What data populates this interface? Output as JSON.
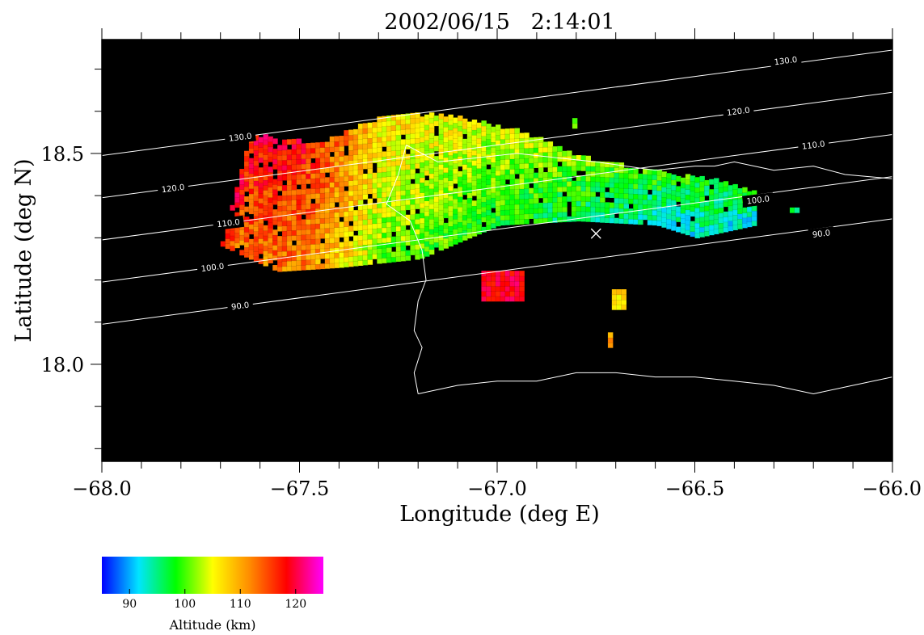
{
  "chart_data": {
    "type": "heatmap",
    "title": "2002/06/15   2:14:01",
    "xlabel": "Longitude (deg E)",
    "ylabel": "Latitude (deg N)",
    "xlim": [
      -68.0,
      -66.0
    ],
    "ylim": [
      17.77,
      18.77
    ],
    "x_ticks": [
      -68.0,
      -67.5,
      -67.0,
      -66.5,
      -66.0
    ],
    "x_tick_labels": [
      "−68.0",
      "−67.5",
      "−67.0",
      "−66.5",
      "−66.0"
    ],
    "x_minor_step": 0.1,
    "y_ticks": [
      18.0,
      18.5
    ],
    "y_tick_labels": [
      "18.0",
      "18.5"
    ],
    "y_minor_step": 0.1,
    "background_color": "#000000",
    "grid": false,
    "cell_size_deg": [
      0.012,
      0.012
    ],
    "value_units": "km",
    "colorbar": {
      "label": "Altitude (km)",
      "range": [
        85,
        125
      ],
      "ticks": [
        90,
        100,
        110,
        120
      ],
      "tick_labels": [
        "90",
        "100",
        "110",
        "120"
      ],
      "colors": [
        "#0000ff",
        "#00e5ff",
        "#00ff00",
        "#ffff00",
        "#ff8c00",
        "#ff0000",
        "#ff00ff"
      ],
      "placement": "bottom-left"
    },
    "altitude_contours": [
      {
        "label": "90.0",
        "line": [
          [
            -68.0,
            18.095
          ],
          [
            -66.0,
            18.345
          ]
        ],
        "label_at": -67.65
      },
      {
        "label": "100.0",
        "line": [
          [
            -68.0,
            18.195
          ],
          [
            -66.0,
            18.445
          ]
        ],
        "label_at": -67.72
      },
      {
        "label": "110.0",
        "line": [
          [
            -68.0,
            18.295
          ],
          [
            -66.0,
            18.545
          ]
        ],
        "label_at": -67.68
      },
      {
        "label": "120.0",
        "line": [
          [
            -68.0,
            18.395
          ],
          [
            -66.0,
            18.645
          ]
        ],
        "label_at": -67.82
      },
      {
        "label": "130.0",
        "line": [
          [
            -68.0,
            18.495
          ],
          [
            -66.0,
            18.745
          ]
        ],
        "label_at": -67.65
      },
      {
        "label": "130.0",
        "line": null,
        "label_at": -66.27,
        "label_y": 18.72
      },
      {
        "label": "120.0",
        "line": null,
        "label_at": -66.39,
        "label_y": 18.6
      },
      {
        "label": "110.0",
        "line": null,
        "label_at": -66.2,
        "label_y": 18.52
      },
      {
        "label": "100.0",
        "line": null,
        "label_at": -66.34,
        "label_y": 18.39
      },
      {
        "label": "90.0",
        "line": null,
        "label_at": -66.18,
        "label_y": 18.31
      }
    ],
    "radar_site": {
      "lon": -66.75,
      "lat": 18.31,
      "marker": "x"
    },
    "echo_region": {
      "lon_range": [
        -67.7,
        -66.35
      ],
      "bottom_edge": [
        [
          -67.7,
          18.28
        ],
        [
          -67.56,
          18.22
        ],
        [
          -67.4,
          18.23
        ],
        [
          -67.2,
          18.25
        ],
        [
          -67.0,
          18.33
        ],
        [
          -66.8,
          18.34
        ],
        [
          -66.6,
          18.33
        ],
        [
          -66.5,
          18.3
        ],
        [
          -66.35,
          18.33
        ]
      ],
      "top_edge": [
        [
          -67.7,
          18.29
        ],
        [
          -67.63,
          18.54
        ],
        [
          -67.45,
          18.52
        ],
        [
          -67.3,
          18.58
        ],
        [
          -67.15,
          18.59
        ],
        [
          -67.05,
          18.57
        ],
        [
          -66.95,
          18.55
        ],
        [
          -66.8,
          18.49
        ],
        [
          -66.6,
          18.45
        ],
        [
          -66.45,
          18.43
        ],
        [
          -66.35,
          18.4
        ]
      ],
      "altitude_profile": [
        [
          -67.7,
          116
        ],
        [
          -67.5,
          115
        ],
        [
          -67.4,
          110
        ],
        [
          -67.3,
          104
        ],
        [
          -67.1,
          102
        ],
        [
          -66.8,
          99
        ],
        [
          -66.6,
          96
        ],
        [
          -66.35,
          95
        ]
      ],
      "altitude_vertical_gradient": 6
    },
    "small_echoes": [
      {
        "lon_range": [
          -67.04,
          -66.94
        ],
        "lat_range": [
          18.15,
          18.21
        ],
        "altitude": 119
      },
      {
        "lon_range": [
          -66.71,
          -66.68
        ],
        "lat_range": [
          18.13,
          18.17
        ],
        "altitude": 107
      },
      {
        "lon_range": [
          -66.26,
          -66.24
        ],
        "lat_range": [
          18.36,
          18.37
        ],
        "altitude": 96
      },
      {
        "lon_range": [
          -66.72,
          -66.715
        ],
        "lat_range": [
          18.04,
          18.07
        ],
        "altitude": 110
      },
      {
        "lon_range": [
          -66.81,
          -66.805
        ],
        "lat_range": [
          18.56,
          18.58
        ],
        "altitude": 101
      }
    ],
    "coastline": {
      "north_coast": [
        [
          -67.23,
          18.52
        ],
        [
          -67.15,
          18.48
        ],
        [
          -67.05,
          18.49
        ],
        [
          -66.95,
          18.5
        ],
        [
          -66.85,
          18.49
        ],
        [
          -66.75,
          18.48
        ],
        [
          -66.6,
          18.46
        ],
        [
          -66.5,
          18.47
        ],
        [
          -66.45,
          18.47
        ],
        [
          -66.4,
          18.48
        ],
        [
          -66.3,
          18.46
        ],
        [
          -66.2,
          18.47
        ],
        [
          -66.12,
          18.45
        ],
        [
          -66.0,
          18.44
        ]
      ],
      "west_coast": [
        [
          -67.23,
          18.52
        ],
        [
          -67.25,
          18.45
        ],
        [
          -67.28,
          18.38
        ],
        [
          -67.22,
          18.34
        ],
        [
          -67.19,
          18.27
        ],
        [
          -67.18,
          18.2
        ],
        [
          -67.2,
          18.15
        ],
        [
          -67.21,
          18.08
        ],
        [
          -67.19,
          18.04
        ],
        [
          -67.21,
          17.98
        ],
        [
          -67.2,
          17.93
        ]
      ],
      "south_coast": [
        [
          -67.2,
          17.93
        ],
        [
          -67.1,
          17.95
        ],
        [
          -67.0,
          17.96
        ],
        [
          -66.9,
          17.96
        ],
        [
          -66.8,
          17.98
        ],
        [
          -66.7,
          17.98
        ],
        [
          -66.6,
          17.97
        ],
        [
          -66.5,
          17.97
        ],
        [
          -66.4,
          17.96
        ],
        [
          -66.3,
          17.95
        ],
        [
          -66.2,
          17.93
        ],
        [
          -66.1,
          17.95
        ],
        [
          -66.0,
          17.97
        ]
      ]
    }
  }
}
